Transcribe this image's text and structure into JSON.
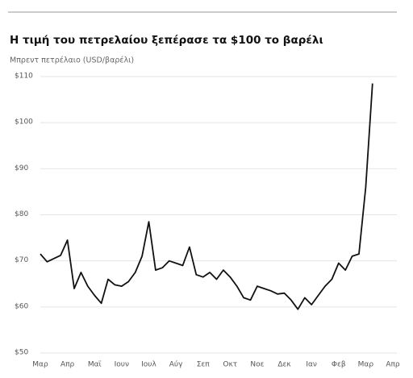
{
  "chart_data": {
    "type": "line",
    "title": "Η τιμή του πετρελαίου ξεπέρασε τα $100 το βαρέλι",
    "subtitle": "Μπρεντ πετρέλαιο (USD/βαρέλι)",
    "categories": [
      "Μαρ",
      null,
      null,
      null,
      "Απρ",
      null,
      null,
      null,
      "Μαϊ",
      null,
      null,
      null,
      "Ιουν",
      null,
      null,
      null,
      "Ιουλ",
      null,
      null,
      null,
      "Αύγ",
      null,
      null,
      null,
      "Σεπ",
      null,
      null,
      null,
      "Οκτ",
      null,
      null,
      null,
      "Νοε",
      null,
      null,
      null,
      "Δεκ",
      null,
      null,
      null,
      "Ιαν",
      null,
      null,
      null,
      "Φεβ",
      null,
      null,
      null,
      "Μαρ",
      null,
      null,
      null,
      "Απρ"
    ],
    "series": [
      {
        "name": "Μπρεντ",
        "color": "#111111",
        "values": [
          71.5,
          69.8,
          70.5,
          71.2,
          74.5,
          64,
          67.5,
          64.5,
          62.5,
          60.8,
          66,
          64.8,
          64.5,
          65.5,
          67.5,
          71,
          78.5,
          68,
          68.5,
          70,
          69.5,
          69,
          73,
          67,
          66.5,
          67.5,
          66,
          68,
          66.5,
          64.5,
          62,
          61.5,
          64.5,
          64,
          63.5,
          62.8,
          63,
          61.5,
          59.5,
          62,
          60.5,
          62.5,
          64.5,
          66,
          69.5,
          68,
          71,
          71.5,
          86,
          108.5,
          null,
          null,
          null
        ]
      }
    ],
    "ylim": [
      50,
      110
    ],
    "yticks": [
      {
        "value": 50,
        "label": "$50"
      },
      {
        "value": 60,
        "label": "$60"
      },
      {
        "value": 70,
        "label": "$70"
      },
      {
        "value": 80,
        "label": "$80"
      },
      {
        "value": 90,
        "label": "$90"
      },
      {
        "value": 100,
        "label": "$100"
      },
      {
        "value": 110,
        "label": "$110"
      }
    ],
    "grid": true
  }
}
